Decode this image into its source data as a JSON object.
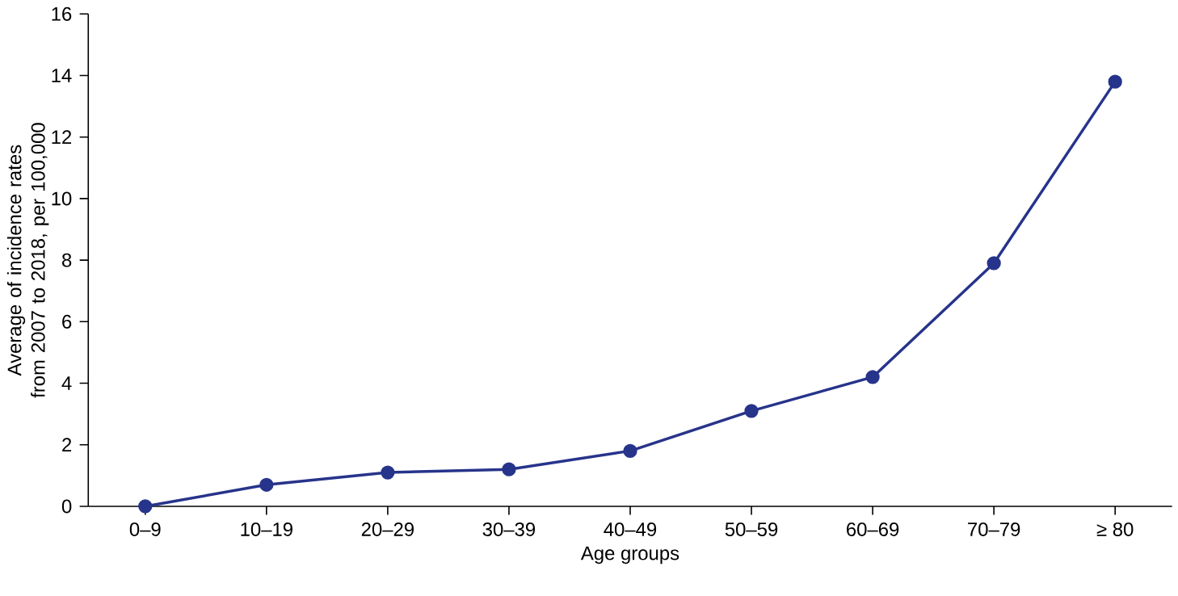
{
  "chart_data": {
    "type": "line",
    "xlabel": "Age groups",
    "ylabel": "Average of incidence rates from 2007 to 2018, per 100,000",
    "categories": [
      "0–9",
      "10–19",
      "20–29",
      "30–39",
      "40–49",
      "50–59",
      "60–69",
      "70–79",
      "≥ 80"
    ],
    "series": [
      {
        "color": "#27348b",
        "values": [
          0,
          0.7,
          1.1,
          1.2,
          1.8,
          3.1,
          4.2,
          7.9,
          13.8
        ]
      }
    ],
    "ylim": [
      0,
      16
    ],
    "yticks": [
      0,
      2,
      4,
      6,
      8,
      10,
      12,
      14,
      16
    ],
    "marker": "circle",
    "line_style": "solid",
    "grid": false
  }
}
